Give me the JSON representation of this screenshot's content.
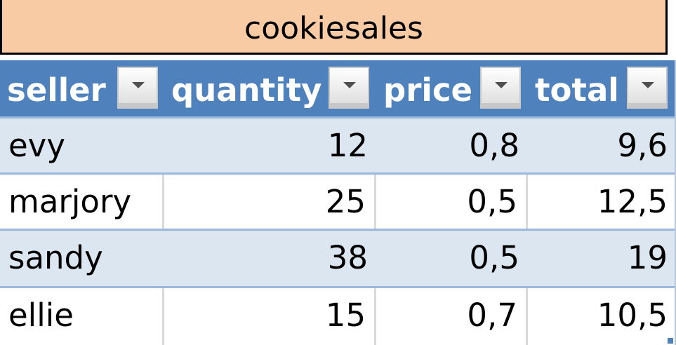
{
  "table": {
    "title": "cookiesales",
    "headers": [
      "seller",
      "quantity",
      "price",
      "total"
    ],
    "rows": [
      [
        "evy",
        "12",
        "0,8",
        "9,6"
      ],
      [
        "marjory",
        "25",
        "0,5",
        "12,5"
      ],
      [
        "sandy",
        "38",
        "0,5",
        "19"
      ],
      [
        "ellie",
        "15",
        "0,7",
        "10,5"
      ]
    ],
    "colors": {
      "title_bg": "#f9cba5",
      "header_bg": "#4f81bd",
      "band_bg": "#dce6f1"
    }
  }
}
